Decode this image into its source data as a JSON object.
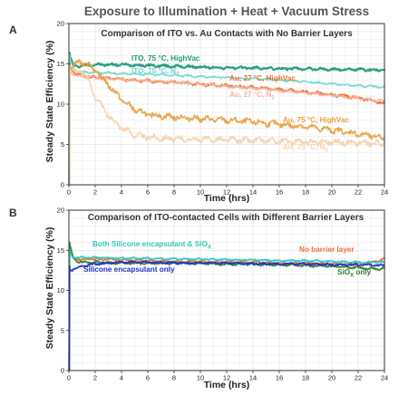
{
  "figure_title": "Exposure to Illumination + Heat + Vacuum Stress",
  "chart_data": [
    {
      "panel": "A",
      "type": "line",
      "title": "Comparison of ITO vs. Au Contacts with No Barrier Layers",
      "xlabel": "Time (hrs)",
      "ylabel": "Steady State Efficiency (%)",
      "xlim": [
        0,
        24
      ],
      "ylim": [
        0,
        20
      ],
      "xticks": [
        "0",
        "2",
        "4",
        "6",
        "8",
        "10",
        "12",
        "14",
        "16",
        "18",
        "20",
        "22",
        "24"
      ],
      "yticks": [
        "0",
        "5",
        "10",
        "15",
        "20"
      ],
      "grid": true,
      "series": [
        {
          "name": "ITO, 75 °C, HighVac",
          "color": "#1f9a7a",
          "x": [
            0.1,
            0.3,
            0.6,
            1,
            2,
            4,
            6,
            8,
            10,
            12,
            14,
            16,
            18,
            20,
            22,
            24
          ],
          "y": [
            15.8,
            14.9,
            14.7,
            14.8,
            14.9,
            14.9,
            14.8,
            14.7,
            14.6,
            14.5,
            14.5,
            14.4,
            14.4,
            14.3,
            14.3,
            14.2
          ],
          "noise": 0.15,
          "width": 2.2
        },
        {
          "name": "ITO, 75 °C, N2",
          "color": "#6fd8cd",
          "x": [
            0.1,
            0.3,
            0.6,
            1,
            2,
            3,
            4,
            6,
            8,
            10,
            12,
            14,
            16,
            18,
            20,
            22,
            24
          ],
          "y": [
            15.5,
            14.5,
            14.2,
            14.0,
            13.9,
            13.9,
            13.8,
            13.7,
            13.6,
            13.4,
            13.3,
            13.2,
            13.0,
            12.8,
            12.5,
            12.3,
            12.1
          ],
          "noise": 0.12,
          "width": 1.6
        },
        {
          "name": "Au, 27 °C, HighVac",
          "color": "#f0702e",
          "x": [
            0.1,
            0.3,
            0.6,
            1,
            2,
            4,
            6,
            8,
            10,
            12,
            14,
            16,
            18,
            20,
            22,
            24
          ],
          "y": [
            14.5,
            14.1,
            13.8,
            13.6,
            13.3,
            13.1,
            12.9,
            12.7,
            12.5,
            12.3,
            12.1,
            11.8,
            11.5,
            11.2,
            10.8,
            10.1
          ],
          "noise": 0.18,
          "width": 1.8
        },
        {
          "name": "Au, 27 °C, N2",
          "color": "#f7b59e",
          "x": [
            0.1,
            0.3,
            0.6,
            1,
            2,
            4,
            6,
            8,
            10,
            12,
            14,
            16,
            18,
            20,
            22,
            24
          ],
          "y": [
            14.2,
            13.8,
            13.5,
            13.4,
            13.3,
            13.1,
            12.9,
            12.7,
            12.5,
            12.2,
            12.0,
            11.7,
            11.4,
            11.1,
            10.7,
            10.4
          ],
          "noise": 0.15,
          "width": 1.6
        },
        {
          "name": "Au, 75 °C, HighVac",
          "color": "#e8a040",
          "x": [
            0.1,
            0.3,
            0.6,
            1,
            1.5,
            2,
            3,
            4,
            5,
            6,
            8,
            10,
            12,
            14,
            16,
            18,
            20,
            22,
            24
          ],
          "y": [
            13.8,
            14.6,
            15.1,
            15.2,
            14.9,
            14.2,
            12.4,
            10.6,
            9.3,
            8.7,
            8.4,
            8.2,
            8.0,
            7.8,
            7.5,
            7.2,
            6.8,
            6.3,
            5.8
          ],
          "noise": 0.35,
          "width": 1.6
        },
        {
          "name": "Au, 75 °C, N2",
          "color": "#f5d2b0",
          "x": [
            0.1,
            0.3,
            0.6,
            1,
            1.5,
            2,
            3,
            4,
            5,
            6,
            8,
            10,
            12,
            14,
            16,
            18,
            20,
            22,
            24
          ],
          "y": [
            13.9,
            14.2,
            14.3,
            14.1,
            12.8,
            10.9,
            8.6,
            7.1,
            6.2,
            5.9,
            5.7,
            5.6,
            5.6,
            5.5,
            5.4,
            5.3,
            5.3,
            5.2,
            5.1
          ],
          "noise": 0.35,
          "width": 1.6
        }
      ],
      "annotations": [
        {
          "text": "ITO, 75 °C, HighVac",
          "sub": "",
          "color": "#1f9a7a"
        },
        {
          "text": "ITO, 75 °C, N",
          "sub": "2",
          "color": "#6fd8cd"
        },
        {
          "text": "Au, 27 °C, HighVac",
          "sub": "",
          "color": "#f0702e"
        },
        {
          "text": "Au, 27 °C, N",
          "sub": "2",
          "color": "#f7b59e"
        },
        {
          "text": "Au, 75 °C, HighVac",
          "sub": "",
          "color": "#e8a040"
        },
        {
          "text": "Au, 75 °C, N",
          "sub": "2",
          "color": "#f5d2b0"
        }
      ]
    },
    {
      "panel": "B",
      "type": "line",
      "title": "Comparison of ITO-contacted Cells with Different Barrier Layers",
      "xlabel": "Time (hrs)",
      "ylabel": "Steady State Efficiency (%)",
      "xlim": [
        0,
        24
      ],
      "ylim": [
        0,
        20
      ],
      "xticks": [
        "0",
        "2",
        "4",
        "6",
        "8",
        "10",
        "12",
        "14",
        "16",
        "18",
        "20",
        "22",
        "24"
      ],
      "yticks": [
        "0",
        "5",
        "10",
        "15",
        "20"
      ],
      "grid": true,
      "series": [
        {
          "name": "No barrier layer",
          "color": "#f0702e",
          "x": [
            0.1,
            0.3,
            0.6,
            1,
            2,
            4,
            6,
            8,
            10,
            12,
            14,
            16,
            18,
            20,
            22,
            23.5,
            24
          ],
          "y": [
            14.6,
            14.1,
            13.9,
            13.9,
            13.9,
            13.8,
            13.7,
            13.6,
            13.6,
            13.5,
            13.5,
            13.4,
            13.4,
            13.3,
            13.3,
            13.6,
            14.1
          ],
          "noise": 0.12,
          "width": 1.8
        },
        {
          "name": "SiOx only",
          "color": "#2e7d2e",
          "x": [
            0.1,
            0.3,
            0.6,
            1,
            2,
            4,
            6,
            8,
            10,
            12,
            14,
            16,
            18,
            20,
            22,
            24
          ],
          "y": [
            15.4,
            14.2,
            13.6,
            13.5,
            13.5,
            13.4,
            13.4,
            13.4,
            13.4,
            13.3,
            13.3,
            13.2,
            13.1,
            13.0,
            12.8,
            12.7
          ],
          "noise": 0.14,
          "width": 1.8
        },
        {
          "name": "Both Silicone encapsulant & SiOx",
          "color": "#2ec9c2",
          "x": [
            0.1,
            0.3,
            0.6,
            1,
            2,
            4,
            6,
            8,
            10,
            12,
            14,
            16,
            18,
            20,
            22,
            24
          ],
          "y": [
            14.6,
            14.2,
            14.1,
            14.1,
            14.1,
            14.0,
            14.0,
            13.9,
            13.9,
            13.8,
            13.8,
            13.7,
            13.7,
            13.6,
            13.5,
            13.5
          ],
          "noise": 0.1,
          "width": 1.8
        },
        {
          "name": "Silicone encapsulant only",
          "color": "#2030c8",
          "x": [
            0.1,
            0.3,
            0.6,
            1,
            2,
            4,
            6,
            8,
            10,
            12,
            14,
            16,
            18,
            20,
            22,
            24
          ],
          "y": [
            12.4,
            12.6,
            12.8,
            13.0,
            13.3,
            13.5,
            13.5,
            13.4,
            13.4,
            13.4,
            13.3,
            13.3,
            13.3,
            13.2,
            13.2,
            13.1
          ],
          "noise": 0.13,
          "width": 1.8
        }
      ],
      "annotations": [
        {
          "text": "Both Silicone encapsulant & SiO",
          "sub": "X",
          "color": "#2ec9c2"
        },
        {
          "text": "Silicone encapsulant only",
          "sub": "",
          "color": "#2030c8"
        },
        {
          "text": "No barrier layer",
          "sub": "",
          "color": "#f0702e"
        },
        {
          "text": "SiO",
          "sub": "X",
          "tail": " only",
          "color": "#2e7d2e"
        }
      ]
    }
  ]
}
